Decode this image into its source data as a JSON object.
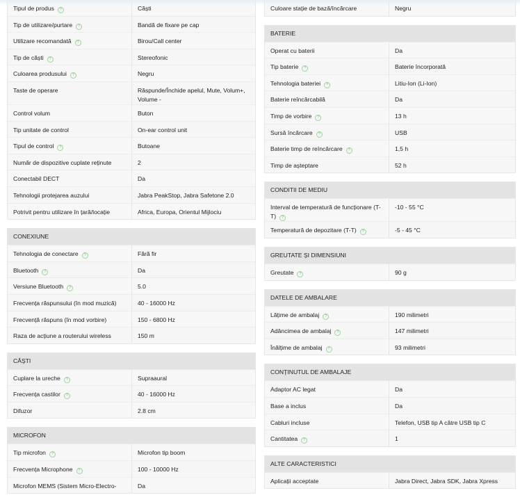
{
  "left": [
    {
      "title": "",
      "rows": [
        {
          "label": "Tipul de produs",
          "help": true,
          "value": "Căști"
        },
        {
          "label": "Tip de utilizare/purtare",
          "help": true,
          "value": "Bandă de fixare pe cap"
        },
        {
          "label": "Utilizare recomandată",
          "help": true,
          "value": "Birou/Call center"
        },
        {
          "label": "Tip de căști",
          "help": true,
          "value": "Stereofonic"
        },
        {
          "label": "Culoarea produsului",
          "help": true,
          "value": "Negru"
        },
        {
          "label": "Taste de operare",
          "help": false,
          "value": "Răspunde/Închide apelul, Mute, Volum+, Volume -"
        },
        {
          "label": "Control volum",
          "help": false,
          "value": "Buton"
        },
        {
          "label": "Tip unitate de control",
          "help": false,
          "value": "On-ear control unit"
        },
        {
          "label": "Tipul de control",
          "help": true,
          "value": "Butoane"
        },
        {
          "label": "Număr de dispozitive cuplate reținute",
          "help": false,
          "value": "2"
        },
        {
          "label": "Conectabil DECT",
          "help": false,
          "value": "Da"
        },
        {
          "label": "Tehnologii protejarea auzului",
          "help": false,
          "value": "Jabra PeakStop, Jabra Safetone 2.0"
        },
        {
          "label": "Potrivit pentru utilizare în țară/locație",
          "help": false,
          "value": "Africa, Europa, Orientul Mijlociu"
        }
      ]
    },
    {
      "title": "CONEXIUNE",
      "rows": [
        {
          "label": "Tehnologia de conectare",
          "help": true,
          "value": "Fără fir"
        },
        {
          "label": "Bluetooth",
          "help": true,
          "value": "Da"
        },
        {
          "label": "Versiune Bluetooth",
          "help": true,
          "value": "5.0"
        },
        {
          "label": "Frecvența răspunsului (în mod muzică)",
          "help": false,
          "value": "40 - 16000 Hz"
        },
        {
          "label": "Frecvență răspuns (în mod vorbire)",
          "help": false,
          "value": "150 - 6800 Hz"
        },
        {
          "label": "Raza de acțiune a routerului wireless",
          "help": false,
          "value": "150 m"
        }
      ]
    },
    {
      "title": "CĂȘTI",
      "rows": [
        {
          "label": "Cuplare la ureche",
          "help": true,
          "value": "Supraaural"
        },
        {
          "label": "Frecvența castilor",
          "help": true,
          "value": "40 - 16000 Hz"
        },
        {
          "label": "Difuzor",
          "help": false,
          "value": "2.8 cm"
        }
      ]
    },
    {
      "title": "MICROFON",
      "rows": [
        {
          "label": "Tip microfon",
          "help": true,
          "value": "Microfon tip boom"
        },
        {
          "label": "Frecvența Microphone",
          "help": true,
          "value": "100 - 10000 Hz"
        },
        {
          "label": "Microfon MEMS (Sistem Micro-Electro-",
          "help": false,
          "value": "Da"
        }
      ]
    }
  ],
  "right": [
    {
      "title": "",
      "rows": [
        {
          "label": "Culoare stație de bază/încărcare",
          "help": false,
          "value": "Negru"
        }
      ]
    },
    {
      "title": "BATERIE",
      "rows": [
        {
          "label": "Operat cu baterii",
          "help": false,
          "value": "Da"
        },
        {
          "label": "Tip baterie",
          "help": true,
          "value": "Baterie încorporată"
        },
        {
          "label": "Tehnologia bateriei",
          "help": true,
          "value": "Litiu-Ion (Li-Ion)"
        },
        {
          "label": "Baterie reîncărcabilă",
          "help": false,
          "value": "Da"
        },
        {
          "label": "Timp de vorbire",
          "help": true,
          "value": "13 h"
        },
        {
          "label": "Sursă încărcare",
          "help": true,
          "value": "USB"
        },
        {
          "label": "Baterie timp de reîncărcare",
          "help": true,
          "value": "1,5 h"
        },
        {
          "label": "Timp de așteptare",
          "help": false,
          "value": "52 h"
        }
      ]
    },
    {
      "title": "CONDITII DE MEDIU",
      "rows": [
        {
          "label": "Interval de temperatură de funcționare (T-T)",
          "help": true,
          "value": "-10 - 55 °C"
        },
        {
          "label": "Temperatură de depozitare (T-T)",
          "help": true,
          "value": "-5 - 45 °C"
        }
      ]
    },
    {
      "title": "GREUTATE ȘI DIMENSIUNI",
      "rows": [
        {
          "label": "Greutate",
          "help": true,
          "value": "90 g"
        }
      ]
    },
    {
      "title": "DATELE DE AMBALARE",
      "rows": [
        {
          "label": "Lățime de ambalaj",
          "help": true,
          "value": "190 milimetri"
        },
        {
          "label": "Adâncimea de ambalaj",
          "help": true,
          "value": "147 milimetri"
        },
        {
          "label": "Înălțime de ambalaj",
          "help": true,
          "value": "93 milimetri"
        }
      ]
    },
    {
      "title": "CONȚINUTUL DE AMBALAJE",
      "rows": [
        {
          "label": "Adaptor AC legat",
          "help": false,
          "value": "Da"
        },
        {
          "label": "Base a inclus",
          "help": false,
          "value": "Da"
        },
        {
          "label": "Cabluri incluse",
          "help": false,
          "value": "Telefon, USB tip A către USB tip C"
        },
        {
          "label": "Cantitatea",
          "help": true,
          "value": "1"
        }
      ]
    },
    {
      "title": "ALTE CARACTERISTICI",
      "rows": [
        {
          "label": "Aplicații acceptate",
          "help": false,
          "value": "Jabra Direct, Jabra SDK, Jabra Xpress"
        }
      ]
    }
  ],
  "icons": {
    "help": "question-circle-icon",
    "help_glyph": "?",
    "help_color": "#6bbf6b",
    "header_bg": "#e3e3e3"
  }
}
